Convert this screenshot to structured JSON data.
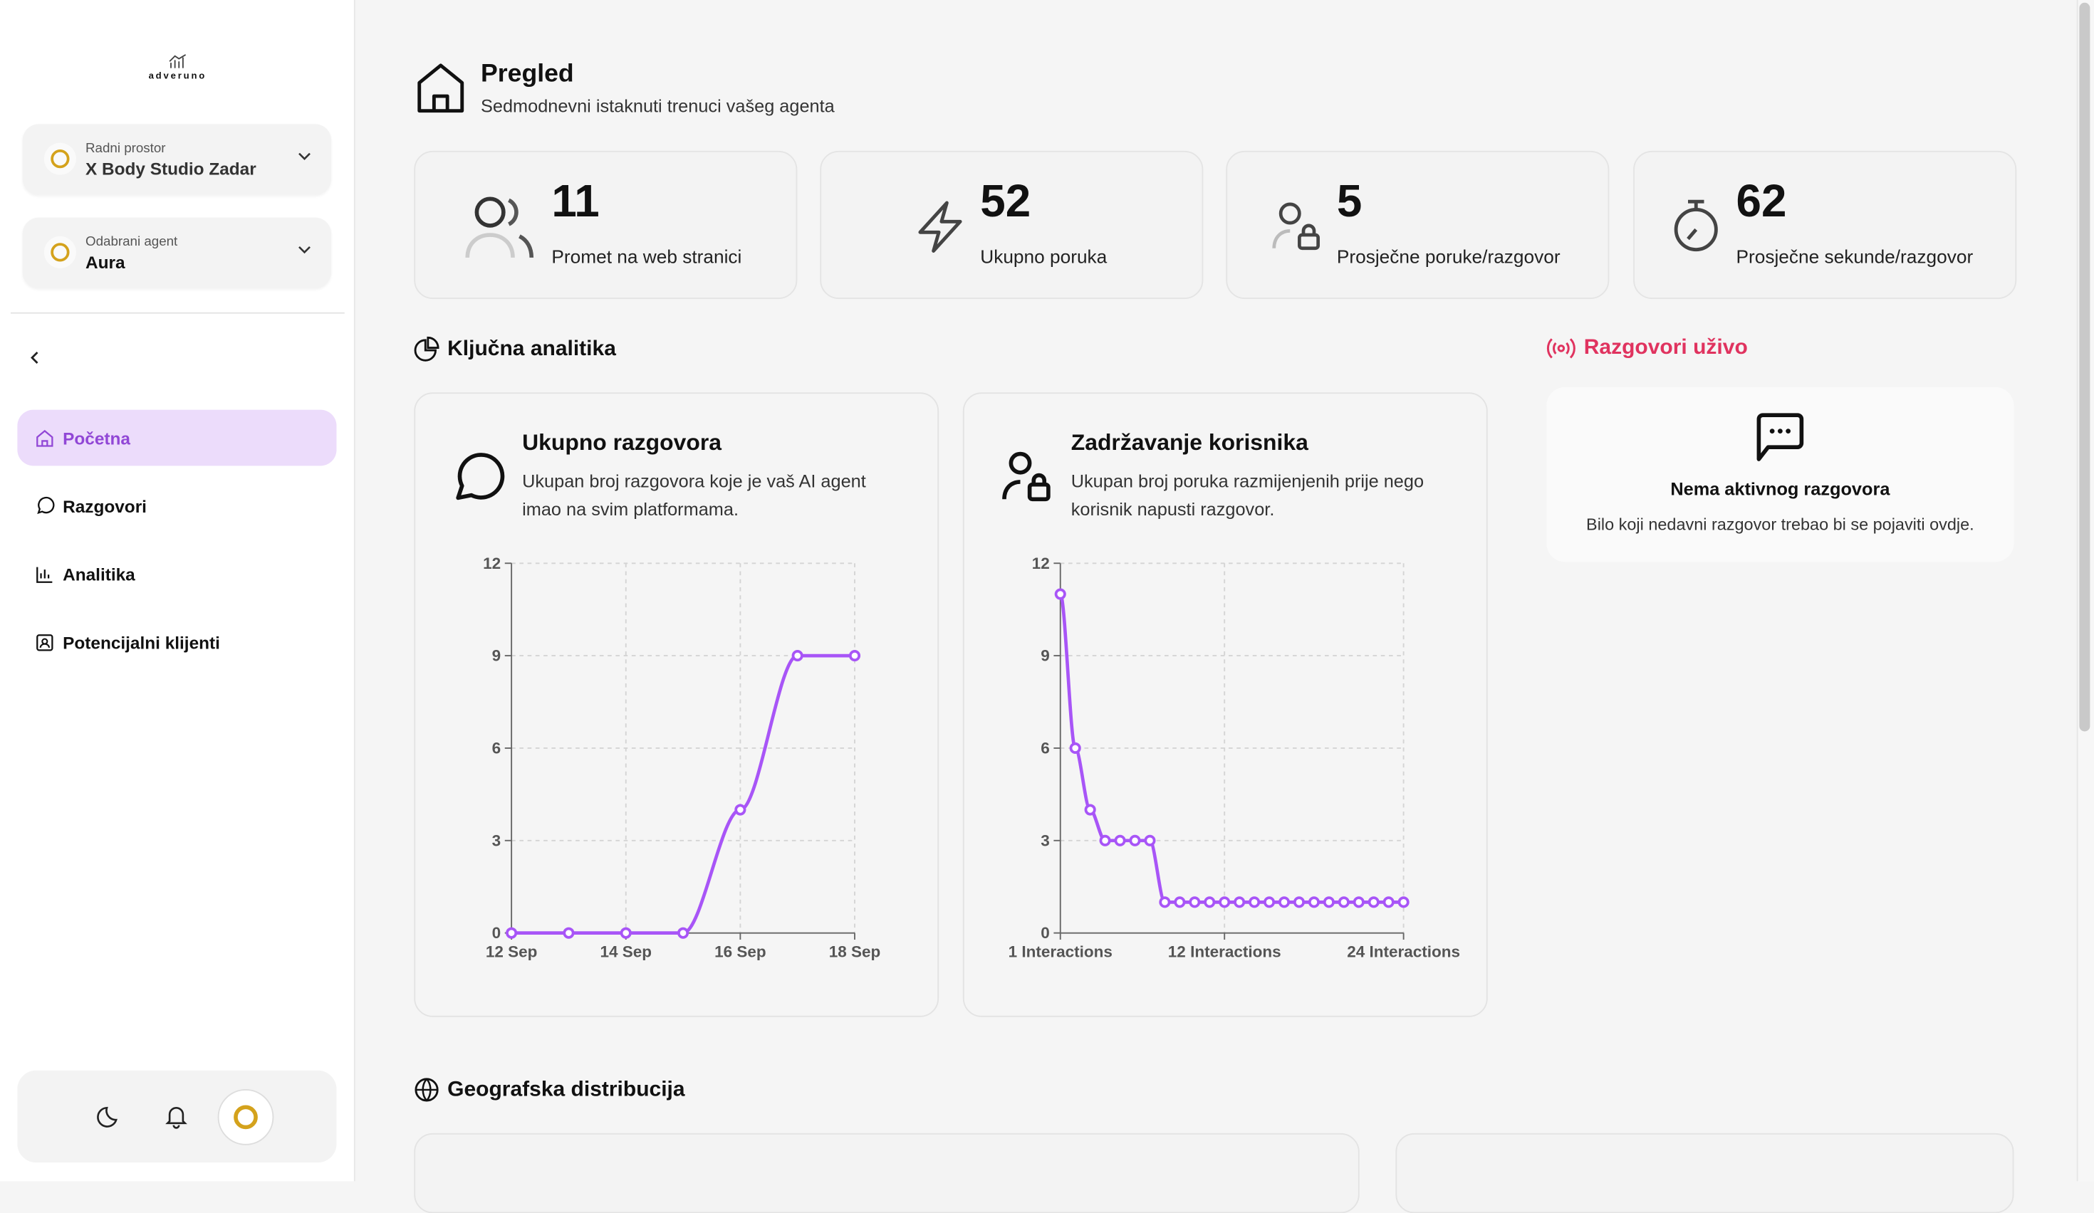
{
  "sidebar": {
    "logo_text": "adveruno",
    "workspace": {
      "label": "Radni prostor",
      "value": "X Body Studio Zadar"
    },
    "agent": {
      "label": "Odabrani agent",
      "value": "Aura"
    },
    "nav": [
      {
        "label": "Početna",
        "icon": "home-icon",
        "active": true
      },
      {
        "label": "Razgovori",
        "icon": "chat-icon"
      },
      {
        "label": "Analitika",
        "icon": "bar-chart-icon"
      },
      {
        "label": "Potencijalni klijenti",
        "icon": "contact-icon"
      }
    ],
    "bottom_icons": [
      "moon-icon",
      "bell-icon",
      "avatar"
    ]
  },
  "header": {
    "title": "Pregled",
    "subtitle": "Sedmodnevni istaknuti trenuci vašeg agenta"
  },
  "stats": [
    {
      "value": "11",
      "label": "Promet na web stranici",
      "icon": "users-icon"
    },
    {
      "value": "52",
      "label": "Ukupno poruka",
      "icon": "lightning-icon"
    },
    {
      "value": "5",
      "label": "Prosječne poruke/razgovor",
      "icon": "user-lock-icon"
    },
    {
      "value": "62",
      "label": "Prosječne sekunde/razgovor",
      "icon": "timer-icon"
    }
  ],
  "sections": {
    "analytics": "Ključna analitika",
    "live": "Razgovori uživo",
    "geo": "Geografska distribucija"
  },
  "colors": {
    "accent": "#a855f7",
    "live": "#e0335f",
    "nav_active_bg": "#ecdcfb"
  },
  "live": {
    "title": "Nema aktivnog razgovora",
    "text": "Bilo koji nedavni razgovor trebao bi se pojaviti ovdje."
  },
  "charts": [
    {
      "title": "Ukupno razgovora",
      "description": "Ukupan broj razgovora koje je vaš AI agent imao na svim platformama."
    },
    {
      "title": "Zadržavanje korisnika",
      "description": "Ukupan broj poruka razmijenjenih prije nego korisnik napusti razgovor."
    }
  ],
  "chart_data": [
    {
      "type": "line",
      "x": [
        "12 Sep",
        "13 Sep",
        "14 Sep",
        "15 Sep",
        "16 Sep",
        "17 Sep",
        "18 Sep"
      ],
      "values": [
        0,
        0,
        0,
        0,
        4,
        9,
        9
      ],
      "xticks": [
        "12 Sep",
        "14 Sep",
        "16 Sep",
        "18 Sep"
      ],
      "yticks": [
        0,
        3,
        6,
        9,
        12
      ],
      "ylim": [
        0,
        12
      ],
      "grid": true
    },
    {
      "type": "line",
      "x": [
        1,
        2,
        3,
        4,
        5,
        6,
        7,
        8,
        9,
        10,
        11,
        12,
        13,
        14,
        15,
        16,
        17,
        18,
        19,
        20,
        21,
        22,
        23,
        24
      ],
      "values": [
        11,
        6,
        4,
        3,
        3,
        3,
        3,
        1,
        1,
        1,
        1,
        1,
        1,
        1,
        1,
        1,
        1,
        1,
        1,
        1,
        1,
        1,
        1,
        1
      ],
      "xticks": [
        "1 Interactions",
        "12 Interactions",
        "24 Interactions"
      ],
      "yticks": [
        0,
        3,
        6,
        9,
        12
      ],
      "ylim": [
        0,
        12
      ],
      "grid": true
    }
  ]
}
